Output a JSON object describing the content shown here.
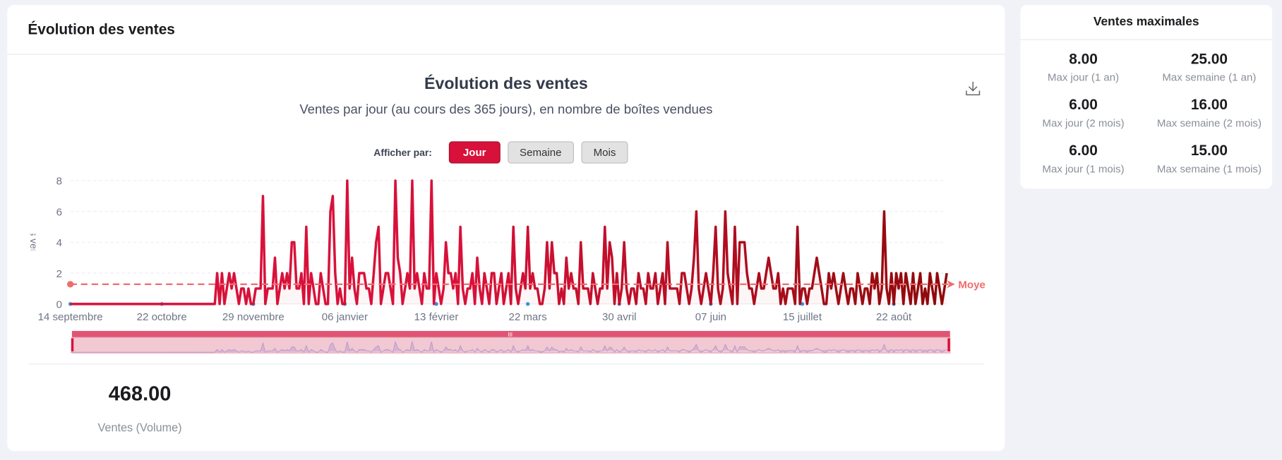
{
  "main": {
    "header_title": "Évolution des ventes",
    "period_label": "Afficher par:",
    "period_buttons": [
      {
        "label": "Jour",
        "active": true
      },
      {
        "label": "Semaine",
        "active": false
      },
      {
        "label": "Mois",
        "active": false
      }
    ],
    "download_icon": "download-icon",
    "total_value": "468.00",
    "total_label": "Ventes (Volume)"
  },
  "side": {
    "title": "Ventes maximales",
    "stats": [
      {
        "value": "8.00",
        "label": "Max jour (1 an)"
      },
      {
        "value": "25.00",
        "label": "Max semaine (1 an)"
      },
      {
        "value": "6.00",
        "label": "Max jour (2 mois)"
      },
      {
        "value": "16.00",
        "label": "Max semaine (2 mois)"
      },
      {
        "value": "6.00",
        "label": "Max jour (1 mois)"
      },
      {
        "value": "15.00",
        "label": "Max semaine (1 mois)"
      }
    ]
  },
  "chart_data": {
    "type": "line",
    "title": "Évolution des ventes",
    "subtitle": "Ventes par jour (au cours des 365 jours), en nombre de boîtes vendues",
    "ylabel": "Boîtes vendues",
    "ylim": [
      0,
      8
    ],
    "yticks": [
      0,
      2,
      4,
      6,
      8
    ],
    "xticks": [
      "14 septembre",
      "22 octobre",
      "29 novembre",
      "06 janvier",
      "13 février",
      "22 mars",
      "30 avril",
      "07 juin",
      "15 juillet",
      "22 août"
    ],
    "x_tick_interval_days": 38,
    "grid": true,
    "average": {
      "label": "Moyenne",
      "value": 1.28
    },
    "colors": {
      "line_start": "#d8113a",
      "line_end": "#8e0a0a",
      "average": "#f26b6b",
      "slider": "#e05573"
    },
    "values": [
      0,
      0,
      0,
      0,
      0,
      0,
      0,
      0,
      0,
      0,
      0,
      0,
      0,
      0,
      0,
      0,
      0,
      0,
      0,
      0,
      0,
      0,
      0,
      0,
      0,
      0,
      0,
      0,
      0,
      0,
      0,
      0,
      0,
      0,
      0,
      0,
      0,
      0,
      0,
      0,
      0,
      0,
      0,
      0,
      0,
      0,
      0,
      0,
      0,
      0,
      0,
      0,
      0,
      0,
      0,
      0,
      0,
      0,
      0,
      0,
      0,
      2,
      0,
      2,
      0,
      1,
      2,
      1,
      2,
      1,
      0,
      1,
      1,
      0,
      1,
      0,
      0,
      1,
      1,
      1,
      7,
      0,
      1,
      1,
      1,
      3,
      0,
      1,
      2,
      1,
      2,
      1,
      4,
      4,
      1,
      1,
      2,
      0,
      5,
      0,
      2,
      1,
      0,
      0,
      2,
      1,
      0,
      0,
      6,
      7,
      2,
      0,
      1,
      0,
      0,
      8,
      1,
      3,
      1,
      0,
      2,
      2,
      2,
      1,
      1,
      0,
      2,
      4,
      5,
      0,
      1,
      2,
      2,
      1,
      0,
      8,
      3,
      2,
      0,
      1,
      2,
      1,
      8,
      1,
      2,
      1,
      0,
      2,
      1,
      1,
      8,
      0,
      2,
      1,
      0,
      1,
      4,
      2,
      2,
      1,
      2,
      0,
      5,
      1,
      0,
      1,
      1,
      2,
      0,
      3,
      1,
      0,
      2,
      1,
      0,
      2,
      2,
      0,
      1,
      2,
      0,
      1,
      2,
      0,
      5,
      1,
      0,
      1,
      2,
      1,
      5,
      1,
      2,
      1,
      1,
      0,
      0,
      1,
      4,
      1,
      4,
      2,
      2,
      0,
      1,
      0,
      3,
      1,
      2,
      1,
      1,
      0,
      4,
      1,
      1,
      1,
      0,
      2,
      1,
      0,
      1,
      1,
      5,
      1,
      4,
      3,
      0,
      2,
      0,
      1,
      4,
      1,
      0,
      1,
      1,
      0,
      2,
      1,
      1,
      0,
      2,
      1,
      1,
      2,
      0,
      1,
      2,
      0,
      4,
      1,
      1,
      1,
      1,
      0,
      2,
      2,
      1,
      0,
      1,
      3,
      6,
      1,
      0,
      1,
      2,
      1,
      0,
      2,
      5,
      1,
      0,
      1,
      6,
      2,
      1,
      0,
      5,
      0,
      4,
      4,
      4,
      2,
      1,
      1,
      0,
      1,
      2,
      1,
      1,
      2,
      3,
      2,
      1,
      1,
      2,
      0,
      1,
      0,
      1,
      1,
      1,
      0,
      5,
      0,
      1,
      1,
      0,
      1,
      1,
      2,
      3,
      2,
      1,
      0,
      0,
      2,
      1,
      2,
      1,
      0,
      1,
      2,
      1,
      0,
      1,
      1,
      0,
      2,
      1,
      0,
      1,
      1,
      0,
      2,
      1,
      2,
      0,
      1,
      6,
      1,
      0,
      2,
      0,
      2,
      1,
      2,
      0,
      2,
      1,
      0,
      2,
      0,
      1,
      2,
      0,
      1,
      0,
      2,
      1,
      0,
      2,
      1,
      0,
      1,
      2
    ]
  }
}
